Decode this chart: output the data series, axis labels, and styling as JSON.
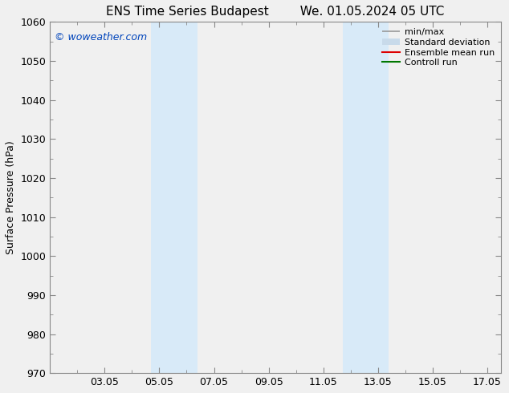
{
  "title_left": "ENS Time Series Budapest",
  "title_right": "We. 01.05.2024 05 UTC",
  "ylabel": "Surface Pressure (hPa)",
  "ylim": [
    970,
    1060
  ],
  "yticks": [
    970,
    980,
    990,
    1000,
    1010,
    1020,
    1030,
    1040,
    1050,
    1060
  ],
  "xlim": [
    0.0,
    16.5
  ],
  "xtick_labels": [
    "03.05",
    "05.05",
    "07.05",
    "09.05",
    "11.05",
    "13.05",
    "15.05",
    "17.05"
  ],
  "xtick_positions": [
    2,
    4,
    6,
    8,
    10,
    12,
    14,
    16
  ],
  "shaded_bands": [
    {
      "x_start": 3.7,
      "x_end": 5.4,
      "color": "#d8eaf8"
    },
    {
      "x_start": 10.7,
      "x_end": 12.4,
      "color": "#d8eaf8"
    }
  ],
  "watermark_text": "© woweather.com",
  "watermark_color": "#0044bb",
  "legend_entries": [
    {
      "label": "min/max",
      "color": "#999999",
      "lw": 1.2
    },
    {
      "label": "Standard deviation",
      "color": "#c8daea",
      "lw": 8
    },
    {
      "label": "Ensemble mean run",
      "color": "#dd0000",
      "lw": 1.5
    },
    {
      "label": "Controll run",
      "color": "#007700",
      "lw": 1.5
    }
  ],
  "bg_color": "#f0f0f0",
  "plot_bg_color": "#f0f0f0",
  "spine_color": "#888888",
  "title_fontsize": 11,
  "label_fontsize": 9,
  "tick_fontsize": 9,
  "legend_fontsize": 8
}
